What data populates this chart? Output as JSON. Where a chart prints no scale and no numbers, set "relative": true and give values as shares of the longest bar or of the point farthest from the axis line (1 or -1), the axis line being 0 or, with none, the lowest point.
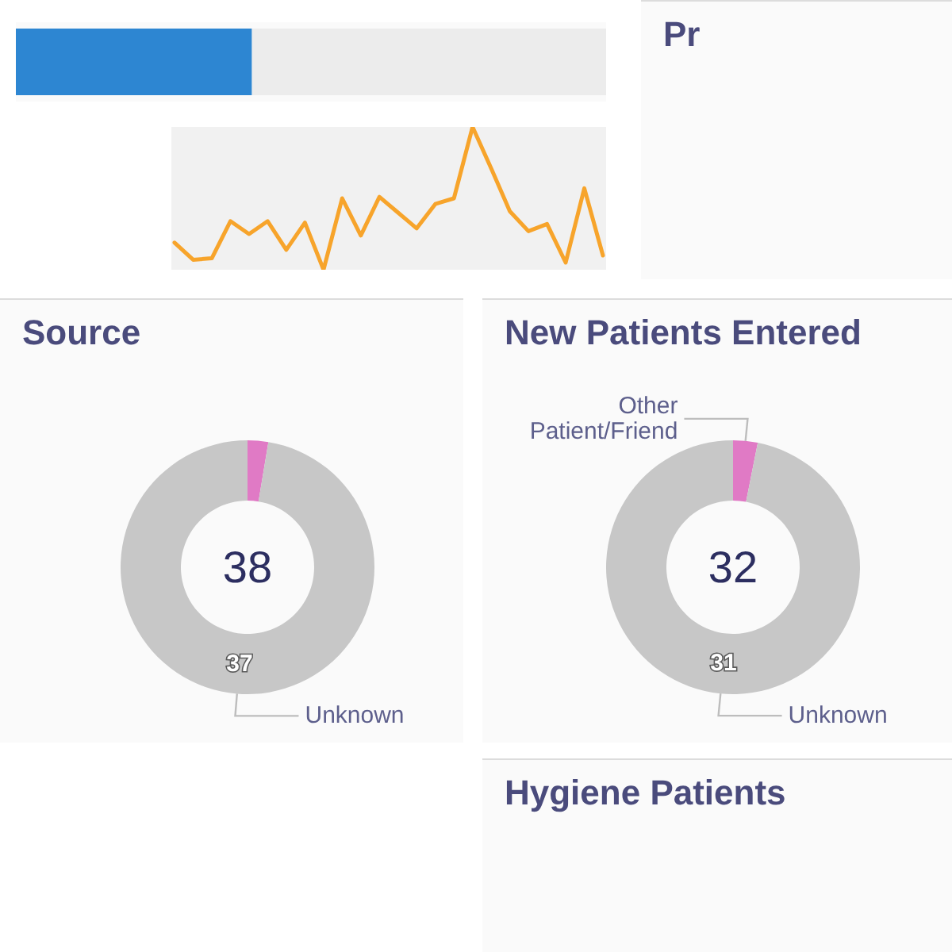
{
  "chart_data": [
    {
      "type": "bar",
      "orientation": "horizontal",
      "stacked": true,
      "relative": true,
      "categories": [
        null
      ],
      "series": [
        {
          "color": "#2d86d2",
          "values": [
            0.4
          ]
        },
        {
          "color": "#ececec",
          "values": [
            0.6
          ]
        }
      ]
    },
    {
      "type": "line",
      "relative": true,
      "marker": "none",
      "color": "#f7a42b",
      "categories": [
        null,
        null,
        null,
        null,
        null,
        null,
        null,
        null,
        null,
        null,
        null,
        null,
        null,
        null,
        null,
        null,
        null,
        null,
        null,
        null,
        null,
        null,
        null,
        null
      ],
      "values": [
        0.19,
        0.07,
        0.08,
        0.34,
        0.25,
        0.34,
        0.14,
        0.33,
        0,
        0.5,
        0.24,
        0.51,
        0.4,
        0.29,
        0.46,
        0.5,
        1,
        0.71,
        0.41,
        0.27,
        0.32,
        0.05,
        0.57,
        0.1
      ]
    },
    {
      "type": "other",
      "title": "Pr"
    },
    {
      "type": "donut",
      "title": "Source",
      "categories": [
        null,
        "Unknown"
      ],
      "values": [
        1,
        37
      ],
      "colors": [
        "#e07ac5",
        "#c7c7c7"
      ],
      "value_labels": [
        null,
        "37"
      ],
      "annotations": [
        "38"
      ]
    },
    {
      "type": "donut",
      "title": "New Patients Entered",
      "categories": [
        "Other Patient/Friend",
        "Unknown"
      ],
      "values": [
        1,
        31
      ],
      "colors": [
        "#e07ac5",
        "#c7c7c7"
      ],
      "value_labels": [
        null,
        "31"
      ],
      "annotations": [
        "32"
      ]
    },
    {
      "type": "other",
      "title": "Hygiene Patients"
    }
  ]
}
